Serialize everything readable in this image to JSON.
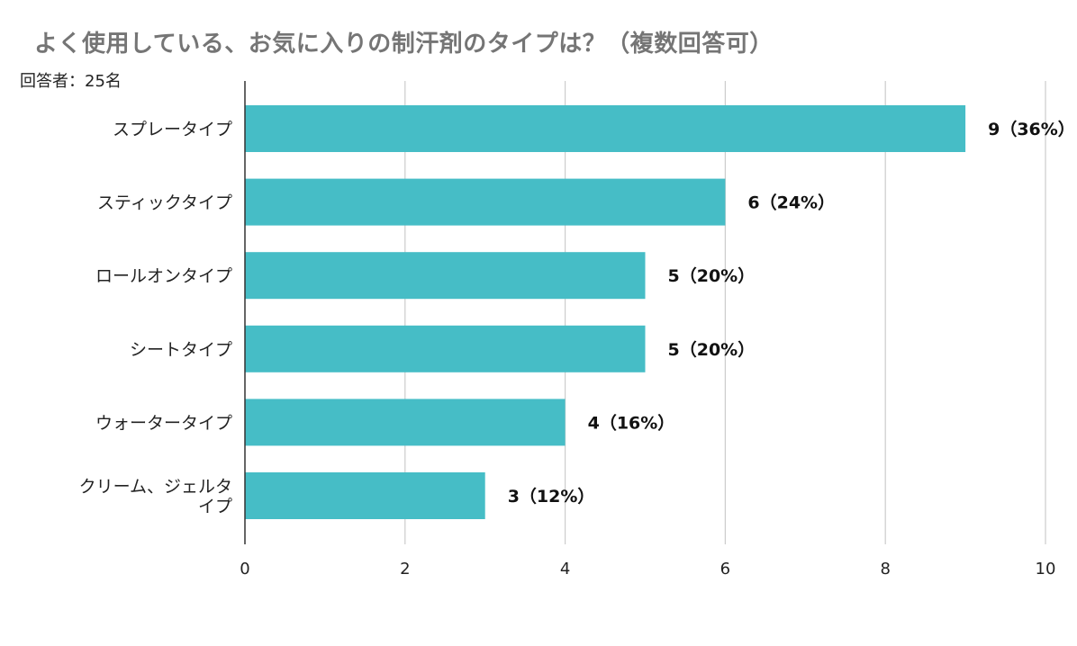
{
  "title": "よく使用している、お気に入りの制汗剤のタイプは？（複数回答可）",
  "subtitle": "回答者：25名",
  "colors": {
    "bar": "#46bdc6",
    "grid": "#cccccc",
    "axis": "#333333",
    "title": "#757575"
  },
  "chart_data": {
    "type": "bar",
    "orientation": "horizontal",
    "title": "よく使用している、お気に入りの制汗剤のタイプは？（複数回答可）",
    "subtitle": "回答者：25名",
    "categories": [
      [
        "スプレータイプ"
      ],
      [
        "スティックタイプ"
      ],
      [
        "ロールオンタイプ"
      ],
      [
        "シートタイプ"
      ],
      [
        "ウォータータイプ"
      ],
      [
        "クリーム、ジェルタ",
        "イプ"
      ]
    ],
    "values": [
      9,
      6,
      5,
      5,
      4,
      3
    ],
    "data_labels": [
      "9（36%）",
      "6（24%）",
      "5（20%）",
      "5（20%）",
      "4（16%）",
      "3（12%）"
    ],
    "xlim": [
      0,
      10
    ],
    "xticks": [
      0,
      2,
      4,
      6,
      8,
      10
    ],
    "grid": true,
    "legend": "none",
    "xlabel": "",
    "ylabel": ""
  }
}
